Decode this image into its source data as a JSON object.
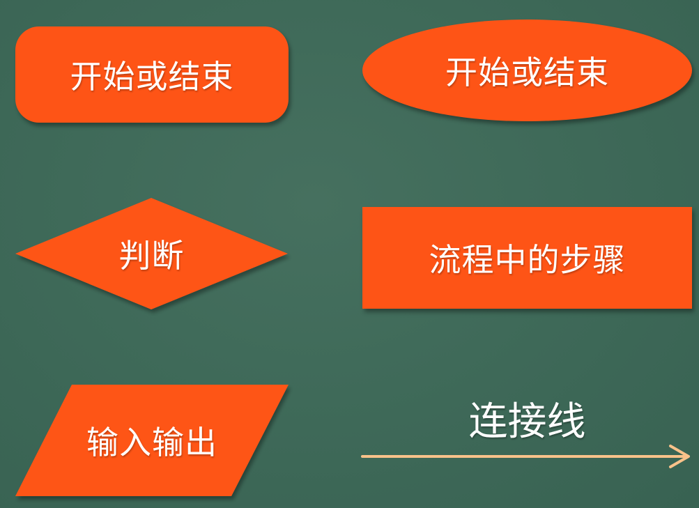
{
  "colors": {
    "background": "#3f6a59",
    "shape_fill": "#fe5416",
    "text": "#ffffff",
    "arrow": "#f9c28a"
  },
  "shapes": {
    "terminal_rounded": {
      "label": "开始或结束"
    },
    "terminal_ellipse": {
      "label": "开始或结束"
    },
    "decision": {
      "label": "判断"
    },
    "process": {
      "label": "流程中的步骤"
    },
    "io": {
      "label": "输入输出"
    },
    "connector": {
      "label": "连接线"
    }
  }
}
